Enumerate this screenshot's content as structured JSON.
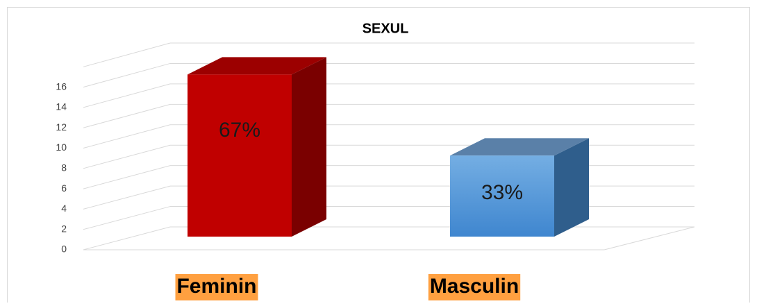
{
  "chart_data": {
    "type": "bar3d",
    "title": "SEXUL",
    "categories": [
      "Feminin",
      "Masculin"
    ],
    "values": [
      16,
      8
    ],
    "annotations": [
      "67%",
      "33%"
    ],
    "colors": [
      "#c00000",
      "#4a8fd6"
    ],
    "ylim": [
      0,
      18
    ],
    "yticks": [
      0,
      2,
      4,
      6,
      8,
      10,
      12,
      14,
      16
    ],
    "grid": true
  }
}
